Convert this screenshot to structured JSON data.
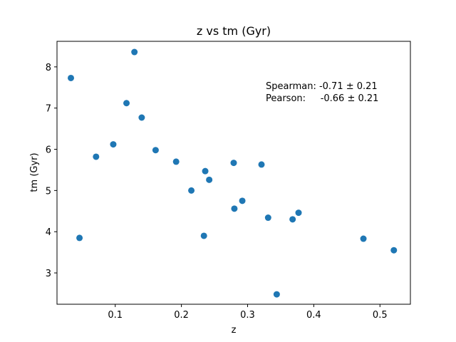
{
  "chart_data": {
    "type": "scatter",
    "title": "z vs tm (Gyr)",
    "xlabel": "z",
    "ylabel": "tm (Gyr)",
    "xlim": [
      0.012,
      0.546
    ],
    "ylim": [
      2.24,
      8.62
    ],
    "xticks": [
      0.1,
      0.2,
      0.3,
      0.4,
      0.5
    ],
    "xtick_labels": [
      "0.1",
      "0.2",
      "0.3",
      "0.4",
      "0.5"
    ],
    "yticks": [
      3,
      4,
      5,
      6,
      7,
      8
    ],
    "ytick_labels": [
      "3",
      "4",
      "5",
      "6",
      "7",
      "8"
    ],
    "grid": false,
    "marker_color": "#1f77b4",
    "points": [
      {
        "x": 0.033,
        "y": 7.73
      },
      {
        "x": 0.046,
        "y": 3.85
      },
      {
        "x": 0.071,
        "y": 5.82
      },
      {
        "x": 0.097,
        "y": 6.12
      },
      {
        "x": 0.117,
        "y": 7.12
      },
      {
        "x": 0.129,
        "y": 8.36
      },
      {
        "x": 0.14,
        "y": 6.77
      },
      {
        "x": 0.161,
        "y": 5.98
      },
      {
        "x": 0.192,
        "y": 5.7
      },
      {
        "x": 0.215,
        "y": 5.0
      },
      {
        "x": 0.234,
        "y": 3.9
      },
      {
        "x": 0.236,
        "y": 5.47
      },
      {
        "x": 0.242,
        "y": 5.26
      },
      {
        "x": 0.279,
        "y": 5.67
      },
      {
        "x": 0.28,
        "y": 4.56
      },
      {
        "x": 0.292,
        "y": 4.75
      },
      {
        "x": 0.321,
        "y": 5.63
      },
      {
        "x": 0.331,
        "y": 4.34
      },
      {
        "x": 0.344,
        "y": 2.48
      },
      {
        "x": 0.368,
        "y": 4.3
      },
      {
        "x": 0.377,
        "y": 4.46
      },
      {
        "x": 0.475,
        "y": 3.83
      },
      {
        "x": 0.521,
        "y": 3.55
      }
    ],
    "annotations": [
      "Spearman: -0.71 ± 0.21",
      "Pearson:     -0.66 ± 0.21"
    ]
  }
}
